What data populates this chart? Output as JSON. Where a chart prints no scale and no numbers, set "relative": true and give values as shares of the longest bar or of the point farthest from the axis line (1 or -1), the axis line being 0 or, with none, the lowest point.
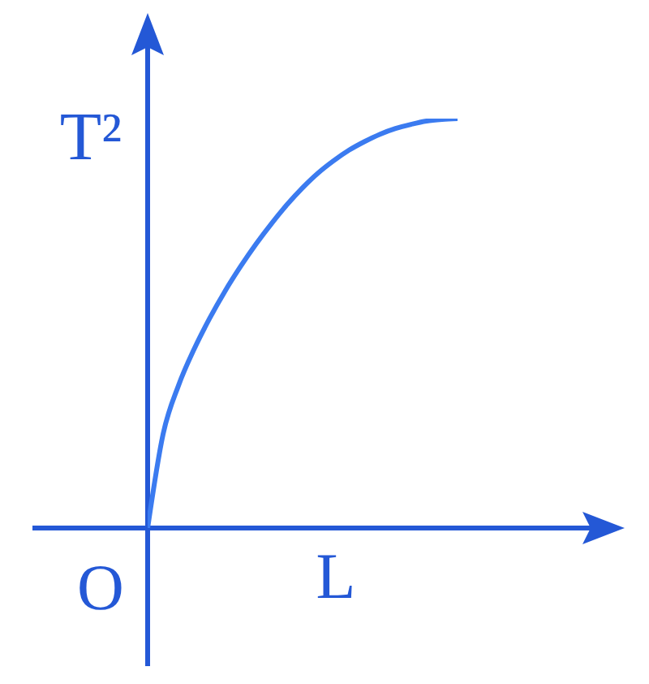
{
  "chart_data": {
    "type": "line",
    "relative": true,
    "xlabel": "L",
    "ylabel": "T²",
    "annotations": [
      "O"
    ],
    "categories": [
      null,
      null,
      null,
      null,
      null,
      null,
      null,
      null,
      null,
      null,
      null,
      null,
      null,
      null,
      null,
      null,
      null,
      null,
      null,
      null,
      null
    ],
    "values": [
      0,
      0.23,
      0.349,
      0.437,
      0.512,
      0.579,
      0.639,
      0.694,
      0.744,
      0.79,
      0.831,
      0.867,
      0.897,
      0.923,
      0.944,
      0.962,
      0.976,
      0.986,
      0.994,
      0.998,
      1
    ],
    "color": "#3b7bf0"
  }
}
